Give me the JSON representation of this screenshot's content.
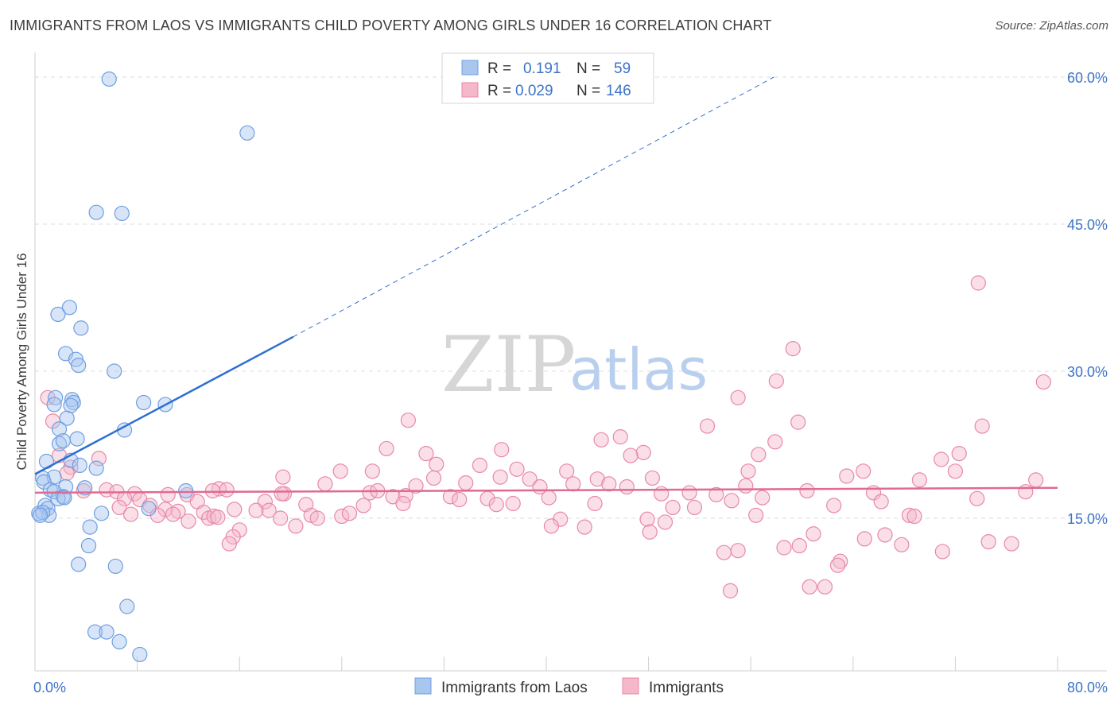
{
  "title": "IMMIGRANTS FROM LAOS VS IMMIGRANTS CHILD POVERTY AMONG GIRLS UNDER 16 CORRELATION CHART",
  "source": "Source: ZipAtlas.com",
  "watermark": {
    "zip": "ZIP",
    "atlas": "atlas"
  },
  "legend": {
    "rows": [
      {
        "r_label": "R =",
        "r_value": "0.191",
        "n_label": "N =",
        "n_value": "59",
        "color": "#a9c6ef"
      },
      {
        "r_label": "R =",
        "r_value": "0.029",
        "n_label": "N =",
        "n_value": "146",
        "color": "#f5b8cb"
      }
    ]
  },
  "chart_data": {
    "type": "scatter",
    "title": "IMMIGRANTS FROM LAOS VS IMMIGRANTS CHILD POVERTY AMONG GIRLS UNDER 16 CORRELATION CHART",
    "ylabel": "Child Poverty Among Girls Under 16",
    "xlabel": "",
    "xlim": [
      0,
      80
    ],
    "ylim": [
      0,
      62
    ],
    "x_tick_labels": [
      "0.0%",
      "80.0%"
    ],
    "y_ticks": [
      15,
      30,
      45,
      60
    ],
    "y_tick_labels": [
      "15.0%",
      "30.0%",
      "45.0%",
      "60.0%"
    ],
    "grid": "horizontal dashed",
    "legend_position": "top-center",
    "series": [
      {
        "name": "Immigrants from Laos",
        "color": "#6f9fe0",
        "fill": "#a9c6ef",
        "trend_color": "#2f6fd0",
        "trend": {
          "x0": 0,
          "y0": 19.5,
          "x1": 20.2,
          "y1": 33.5,
          "dashed_to_x": 57.8,
          "dashed_to_y": 60
        },
        "points": [
          [
            5.8,
            59.8
          ],
          [
            16.6,
            54.3
          ],
          [
            4.8,
            46.2
          ],
          [
            6.8,
            46.1
          ],
          [
            2.7,
            36.5
          ],
          [
            1.8,
            35.8
          ],
          [
            3.6,
            34.4
          ],
          [
            2.4,
            31.8
          ],
          [
            3.2,
            31.2
          ],
          [
            3.4,
            30.6
          ],
          [
            6.2,
            30.0
          ],
          [
            1.6,
            27.3
          ],
          [
            2.9,
            27.1
          ],
          [
            1.5,
            26.6
          ],
          [
            3.0,
            26.8
          ],
          [
            2.8,
            26.5
          ],
          [
            8.5,
            26.8
          ],
          [
            10.2,
            26.6
          ],
          [
            2.5,
            25.2
          ],
          [
            1.9,
            24.1
          ],
          [
            7.0,
            24.0
          ],
          [
            1.9,
            22.6
          ],
          [
            3.3,
            23.1
          ],
          [
            2.2,
            22.9
          ],
          [
            2.8,
            20.9
          ],
          [
            0.9,
            20.8
          ],
          [
            3.5,
            20.4
          ],
          [
            4.8,
            20.1
          ],
          [
            1.5,
            19.2
          ],
          [
            0.6,
            19.1
          ],
          [
            0.7,
            18.7
          ],
          [
            2.4,
            18.2
          ],
          [
            1.2,
            17.9
          ],
          [
            3.9,
            18.1
          ],
          [
            1.5,
            17.7
          ],
          [
            11.8,
            17.8
          ],
          [
            2.2,
            17.2
          ],
          [
            1.8,
            17.0
          ],
          [
            2.3,
            17.1
          ],
          [
            0.8,
            16.3
          ],
          [
            1.0,
            16.0
          ],
          [
            5.2,
            15.5
          ],
          [
            0.3,
            15.5
          ],
          [
            1.1,
            15.3
          ],
          [
            0.6,
            15.6
          ],
          [
            0.4,
            15.3
          ],
          [
            8.9,
            16.0
          ],
          [
            4.3,
            14.1
          ],
          [
            4.2,
            12.2
          ],
          [
            3.4,
            10.3
          ],
          [
            6.3,
            10.1
          ],
          [
            7.2,
            6.0
          ],
          [
            4.7,
            3.4
          ],
          [
            5.6,
            3.4
          ],
          [
            6.6,
            2.4
          ],
          [
            8.2,
            1.1
          ]
        ]
      },
      {
        "name": "Immigrants",
        "color": "#e889a6",
        "fill": "#f5b8cb",
        "trend_color": "#e06a92",
        "trend": {
          "x0": 0,
          "y0": 17.6,
          "x1": 80,
          "y1": 18.1
        },
        "points": [
          [
            73.8,
            39.0
          ],
          [
            59.3,
            32.3
          ],
          [
            1.0,
            27.3
          ],
          [
            78.9,
            28.9
          ],
          [
            58.0,
            29.0
          ],
          [
            55.0,
            27.3
          ],
          [
            29.2,
            25.0
          ],
          [
            59.7,
            24.8
          ],
          [
            74.1,
            24.4
          ],
          [
            52.6,
            24.4
          ],
          [
            1.4,
            24.9
          ],
          [
            45.8,
            23.3
          ],
          [
            44.3,
            23.0
          ],
          [
            57.9,
            22.8
          ],
          [
            27.5,
            22.1
          ],
          [
            36.5,
            22.0
          ],
          [
            72.3,
            21.6
          ],
          [
            56.6,
            21.5
          ],
          [
            1.9,
            21.4
          ],
          [
            47.6,
            21.7
          ],
          [
            46.6,
            21.4
          ],
          [
            30.6,
            21.6
          ],
          [
            5.0,
            21.1
          ],
          [
            70.9,
            21.0
          ],
          [
            31.4,
            20.5
          ],
          [
            34.8,
            20.4
          ],
          [
            2.8,
            20.2
          ],
          [
            37.7,
            20.0
          ],
          [
            23.9,
            19.8
          ],
          [
            2.5,
            19.6
          ],
          [
            26.4,
            19.8
          ],
          [
            64.8,
            19.8
          ],
          [
            41.6,
            19.8
          ],
          [
            63.5,
            19.3
          ],
          [
            55.8,
            19.8
          ],
          [
            31.2,
            19.1
          ],
          [
            19.4,
            19.2
          ],
          [
            36.4,
            19.2
          ],
          [
            44.0,
            19.0
          ],
          [
            44.9,
            18.5
          ],
          [
            38.7,
            19.0
          ],
          [
            48.3,
            19.1
          ],
          [
            33.7,
            18.6
          ],
          [
            55.6,
            18.3
          ],
          [
            78.3,
            18.9
          ],
          [
            69.2,
            18.9
          ],
          [
            72.0,
            19.8
          ],
          [
            22.7,
            18.5
          ],
          [
            42.1,
            18.5
          ],
          [
            29.8,
            18.3
          ],
          [
            39.5,
            18.2
          ],
          [
            46.3,
            18.2
          ],
          [
            14.4,
            18.0
          ],
          [
            15.0,
            17.9
          ],
          [
            13.9,
            17.8
          ],
          [
            5.6,
            17.9
          ],
          [
            3.8,
            17.8
          ],
          [
            6.4,
            17.7
          ],
          [
            7.8,
            17.5
          ],
          [
            10.4,
            17.4
          ],
          [
            11.9,
            17.4
          ],
          [
            19.5,
            17.5
          ],
          [
            26.2,
            17.6
          ],
          [
            26.8,
            17.8
          ],
          [
            28.0,
            17.2
          ],
          [
            29.0,
            17.3
          ],
          [
            32.5,
            17.2
          ],
          [
            35.4,
            17.0
          ],
          [
            40.2,
            17.1
          ],
          [
            49.0,
            17.5
          ],
          [
            51.2,
            17.6
          ],
          [
            53.3,
            17.4
          ],
          [
            56.9,
            17.1
          ],
          [
            60.4,
            17.8
          ],
          [
            65.6,
            17.6
          ],
          [
            73.7,
            17.0
          ],
          [
            77.5,
            17.7
          ],
          [
            7.0,
            17.0
          ],
          [
            8.2,
            16.9
          ],
          [
            12.7,
            16.7
          ],
          [
            18.0,
            16.7
          ],
          [
            21.2,
            16.4
          ],
          [
            25.7,
            16.3
          ],
          [
            28.8,
            16.5
          ],
          [
            33.2,
            16.9
          ],
          [
            36.1,
            16.4
          ],
          [
            37.4,
            16.5
          ],
          [
            43.8,
            16.5
          ],
          [
            49.9,
            16.1
          ],
          [
            51.6,
            16.1
          ],
          [
            54.5,
            16.8
          ],
          [
            62.5,
            16.3
          ],
          [
            66.2,
            16.7
          ],
          [
            68.4,
            15.3
          ],
          [
            68.8,
            15.2
          ],
          [
            6.6,
            16.1
          ],
          [
            9.0,
            16.3
          ],
          [
            10.2,
            15.9
          ],
          [
            11.2,
            15.7
          ],
          [
            13.2,
            15.6
          ],
          [
            15.6,
            15.9
          ],
          [
            17.3,
            15.8
          ],
          [
            18.3,
            15.8
          ],
          [
            21.6,
            15.3
          ],
          [
            24.0,
            15.2
          ],
          [
            24.6,
            15.5
          ],
          [
            22.1,
            15.0
          ],
          [
            7.5,
            15.4
          ],
          [
            9.6,
            15.3
          ],
          [
            10.8,
            15.4
          ],
          [
            13.6,
            15.0
          ],
          [
            14.0,
            15.2
          ],
          [
            56.4,
            15.3
          ],
          [
            47.9,
            14.9
          ],
          [
            49.3,
            14.6
          ],
          [
            41.1,
            14.9
          ],
          [
            12.0,
            14.7
          ],
          [
            14.3,
            15.1
          ],
          [
            40.4,
            14.2
          ],
          [
            43.0,
            14.1
          ],
          [
            48.1,
            13.6
          ],
          [
            16.0,
            13.8
          ],
          [
            20.4,
            14.2
          ],
          [
            15.5,
            13.1
          ],
          [
            19.2,
            15.0
          ],
          [
            60.9,
            13.4
          ],
          [
            64.9,
            12.9
          ],
          [
            66.5,
            13.3
          ],
          [
            67.8,
            12.3
          ],
          [
            74.6,
            12.6
          ],
          [
            76.4,
            12.4
          ],
          [
            15.2,
            12.4
          ],
          [
            59.8,
            12.2
          ],
          [
            58.6,
            12.0
          ],
          [
            71.0,
            11.6
          ],
          [
            63.0,
            10.6
          ],
          [
            55.0,
            11.7
          ],
          [
            53.9,
            11.5
          ],
          [
            62.8,
            10.2
          ],
          [
            54.4,
            7.6
          ],
          [
            60.6,
            8.0
          ],
          [
            61.8,
            8.0
          ],
          [
            19.3,
            17.5
          ]
        ]
      }
    ]
  }
}
